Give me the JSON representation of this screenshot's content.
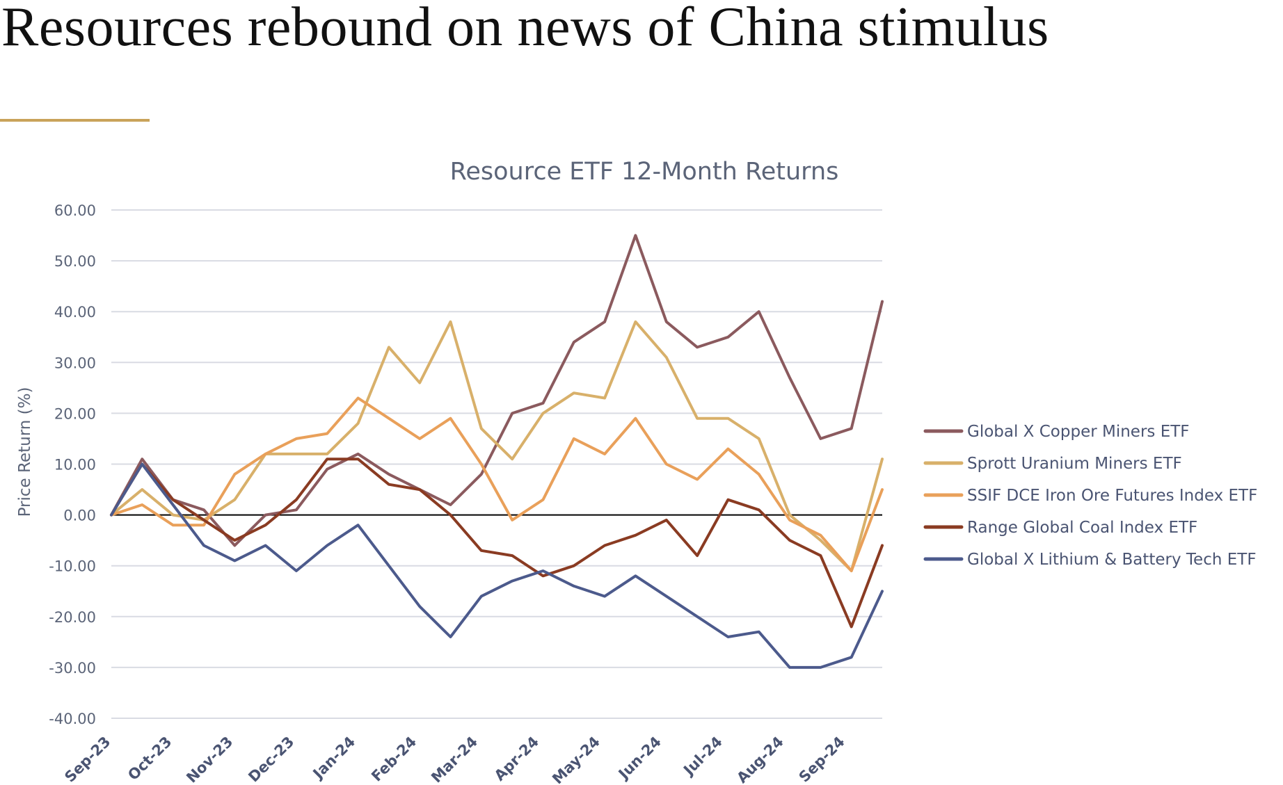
{
  "page": {
    "headline": "Resources rebound on news of China stimulus",
    "accent_color": "#c9a35a"
  },
  "chart_data": {
    "type": "line",
    "title": "Resource ETF 12-Month Returns",
    "xlabel": "",
    "ylabel": "Price Return (%)",
    "ylim": [
      -40,
      60
    ],
    "y_ticks": [
      "60.00",
      "50.00",
      "40.00",
      "30.00",
      "20.00",
      "10.00",
      "0.00",
      "-10.00",
      "-20.00",
      "-30.00",
      "-40.00"
    ],
    "y_tick_values": [
      60,
      50,
      40,
      30,
      20,
      10,
      0,
      -10,
      -20,
      -30,
      -40
    ],
    "x_ticks": [
      "Sep-23",
      "Oct-23",
      "Nov-23",
      "Dec-23",
      "Jan-24",
      "Feb-24",
      "Mar-24",
      "Apr-24",
      "May-24",
      "Jun-24",
      "Jul-24",
      "Aug-24",
      "Sep-24"
    ],
    "x_range": [
      "Sep-23",
      "Sep-24"
    ],
    "grid": true,
    "legend_position": "right",
    "x": [
      "Sep-23",
      "Sep-23",
      "Oct-23",
      "Oct-23",
      "Nov-23",
      "Nov-23",
      "Dec-23",
      "Dec-23",
      "Jan-24",
      "Jan-24",
      "Feb-24",
      "Feb-24",
      "Mar-24",
      "Mar-24",
      "Apr-24",
      "Apr-24",
      "May-24",
      "May-24",
      "Jun-24",
      "Jun-24",
      "Jul-24",
      "Jul-24",
      "Aug-24",
      "Aug-24",
      "Sep-24",
      "Sep-24"
    ],
    "series": [
      {
        "name": "Global X Copper Miners ETF",
        "color": "#8b5a5e",
        "values": [
          0,
          11,
          3,
          1,
          -6,
          0,
          1,
          9,
          12,
          8,
          5,
          2,
          8,
          20,
          22,
          34,
          38,
          55,
          38,
          33,
          35,
          40,
          27,
          15,
          17,
          42
        ]
      },
      {
        "name": "Sprott Uranium Miners ETF",
        "color": "#d8b06a",
        "values": [
          0,
          5,
          0,
          -1,
          3,
          12,
          12,
          12,
          18,
          33,
          26,
          38,
          17,
          11,
          20,
          24,
          23,
          38,
          31,
          19,
          19,
          15,
          0,
          -5,
          -11,
          11
        ]
      },
      {
        "name": "SSIF DCE Iron Ore Futures Index ETF",
        "color": "#e9a05a",
        "values": [
          0,
          2,
          -2,
          -2,
          8,
          12,
          15,
          16,
          23,
          19,
          15,
          19,
          10,
          -1,
          3,
          15,
          12,
          19,
          10,
          7,
          13,
          8,
          -1,
          -4,
          -11,
          5
        ]
      },
      {
        "name": "Range Global Coal Index ETF",
        "color": "#8a3b22",
        "values": [
          0,
          10,
          3,
          -1,
          -5,
          -2,
          3,
          11,
          11,
          6,
          5,
          0,
          -7,
          -8,
          -12,
          -10,
          -6,
          -4,
          -1,
          -8,
          3,
          1,
          -5,
          -8,
          -22,
          -6
        ]
      },
      {
        "name": "Global X Lithium & Battery Tech ETF",
        "color": "#4c5a8c",
        "values": [
          0,
          10,
          2,
          -6,
          -9,
          -6,
          -11,
          -6,
          -2,
          -10,
          -18,
          -24,
          -16,
          -13,
          -11,
          -14,
          -16,
          -12,
          -16,
          -20,
          -24,
          -23,
          -30,
          -30,
          -28,
          -15
        ]
      }
    ]
  }
}
